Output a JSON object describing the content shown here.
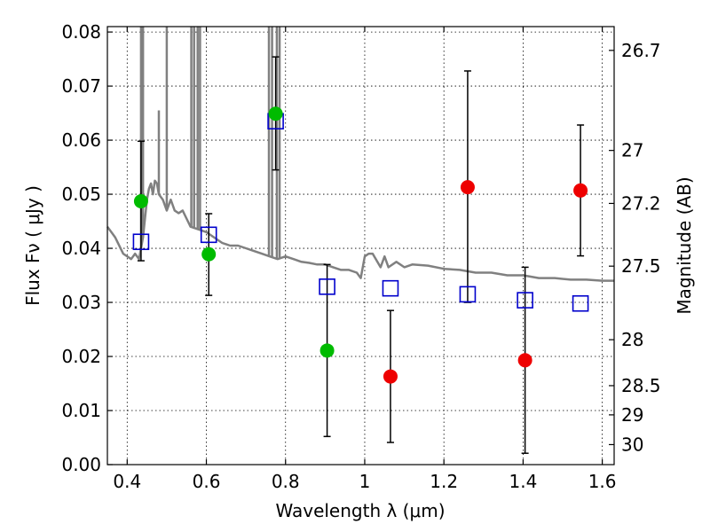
{
  "chart_data": {
    "type": "scatter",
    "xlabel": "Wavelength  λ (μm)",
    "ylabel": "Flux  Fν  ( μJy )",
    "y2label": "Magnitude (AB)",
    "xlim": [
      0.35,
      1.63
    ],
    "ylim": [
      0.0,
      0.081
    ],
    "grid": true,
    "x_ticks": [
      0.4,
      0.6,
      0.8,
      1.0,
      1.2,
      1.4,
      1.6
    ],
    "x_tick_labels": [
      "0.4",
      "0.6",
      "0.8",
      "1",
      "1.2",
      "1.4",
      "1.6"
    ],
    "y_ticks": [
      0.0,
      0.01,
      0.02,
      0.03,
      0.04,
      0.05,
      0.06,
      0.07,
      0.08
    ],
    "y_tick_labels": [
      "0.00",
      "0.01",
      "0.02",
      "0.03",
      "0.04",
      "0.05",
      "0.06",
      "0.07",
      "0.08"
    ],
    "y2_ticks": [
      {
        "label": "26.7",
        "flux": 0.0766
      },
      {
        "label": "27",
        "flux": 0.0581
      },
      {
        "label": "27.2",
        "flux": 0.0483
      },
      {
        "label": "27.5",
        "flux": 0.0367
      },
      {
        "label": "28",
        "flux": 0.0231
      },
      {
        "label": "28.5",
        "flux": 0.0146
      },
      {
        "label": "29",
        "flux": 0.0092
      },
      {
        "label": "30",
        "flux": 0.0037
      }
    ],
    "colors": {
      "detected": "#00bb00",
      "upper_limit": "#ee0000",
      "model_band": "#0000cc",
      "template": "#808080",
      "error_bar": "#000000"
    },
    "series": [
      {
        "points": [
          {
            "x": 0.435,
            "y": 0.0487,
            "err_low": 0.0377,
            "err_high": 0.0598
          },
          {
            "x": 0.606,
            "y": 0.0389,
            "err_low": 0.0313,
            "err_high": 0.0464
          },
          {
            "x": 0.775,
            "y": 0.0649,
            "err_low": 0.0545,
            "err_high": 0.0754
          },
          {
            "x": 0.905,
            "y": 0.0211,
            "err_low": 0.0052,
            "err_high": 0.037
          }
        ]
      },
      {
        "points": [
          {
            "x": 1.065,
            "y": 0.0163,
            "err_low": 0.0041,
            "err_high": 0.0285
          },
          {
            "x": 1.26,
            "y": 0.0513,
            "err_low": 0.03,
            "err_high": 0.0728
          },
          {
            "x": 1.405,
            "y": 0.0193,
            "err_low": 0.0021,
            "err_high": 0.0365
          },
          {
            "x": 1.545,
            "y": 0.0507,
            "err_low": 0.0386,
            "err_high": 0.0628
          }
        ]
      },
      {
        "points": [
          {
            "x": 0.435,
            "y": 0.0412
          },
          {
            "x": 0.606,
            "y": 0.0425
          },
          {
            "x": 0.775,
            "y": 0.0635
          },
          {
            "x": 0.905,
            "y": 0.0329
          },
          {
            "x": 1.065,
            "y": 0.0326
          },
          {
            "x": 1.26,
            "y": 0.0315
          },
          {
            "x": 1.405,
            "y": 0.0304
          },
          {
            "x": 1.545,
            "y": 0.0298
          }
        ]
      },
      {
        "x": [
          0.35,
          0.37,
          0.39,
          0.41,
          0.42,
          0.43,
          0.44,
          0.45,
          0.455,
          0.46,
          0.465,
          0.47,
          0.475,
          0.48,
          0.49,
          0.5,
          0.51,
          0.52,
          0.53,
          0.54,
          0.55,
          0.56,
          0.58,
          0.6,
          0.62,
          0.64,
          0.66,
          0.68,
          0.7,
          0.72,
          0.74,
          0.76,
          0.78,
          0.8,
          0.82,
          0.84,
          0.86,
          0.88,
          0.9,
          0.92,
          0.94,
          0.96,
          0.98,
          0.99,
          1.0,
          1.01,
          1.02,
          1.04,
          1.05,
          1.06,
          1.08,
          1.1,
          1.12,
          1.16,
          1.2,
          1.24,
          1.28,
          1.32,
          1.36,
          1.4,
          1.44,
          1.48,
          1.52,
          1.56,
          1.6,
          1.63
        ],
        "y": [
          0.044,
          0.042,
          0.039,
          0.038,
          0.039,
          0.038,
          0.042,
          0.049,
          0.051,
          0.052,
          0.05,
          0.0525,
          0.052,
          0.05,
          0.049,
          0.047,
          0.049,
          0.047,
          0.0465,
          0.047,
          0.0455,
          0.044,
          0.0435,
          0.043,
          0.042,
          0.041,
          0.0405,
          0.0405,
          0.04,
          0.0395,
          0.039,
          0.0385,
          0.038,
          0.0385,
          0.038,
          0.0375,
          0.0373,
          0.037,
          0.037,
          0.0365,
          0.036,
          0.036,
          0.0355,
          0.0345,
          0.0385,
          0.039,
          0.039,
          0.0365,
          0.0385,
          0.0365,
          0.0375,
          0.0365,
          0.037,
          0.0368,
          0.0362,
          0.036,
          0.0355,
          0.0355,
          0.035,
          0.035,
          0.0345,
          0.0345,
          0.0342,
          0.0342,
          0.034,
          0.034
        ]
      }
    ],
    "emission_lines": [
      {
        "x": 0.435,
        "peak": 0.081
      },
      {
        "x": 0.44,
        "peak": 0.081
      },
      {
        "x": 0.48,
        "peak": 0.0655
      },
      {
        "x": 0.5,
        "peak": 0.081
      },
      {
        "x": 0.562,
        "peak": 0.081
      },
      {
        "x": 0.569,
        "peak": 0.081
      },
      {
        "x": 0.578,
        "peak": 0.081
      },
      {
        "x": 0.584,
        "peak": 0.081
      },
      {
        "x": 0.758,
        "peak": 0.081
      },
      {
        "x": 0.766,
        "peak": 0.081
      },
      {
        "x": 0.778,
        "peak": 0.081
      },
      {
        "x": 0.785,
        "peak": 0.081
      }
    ]
  }
}
